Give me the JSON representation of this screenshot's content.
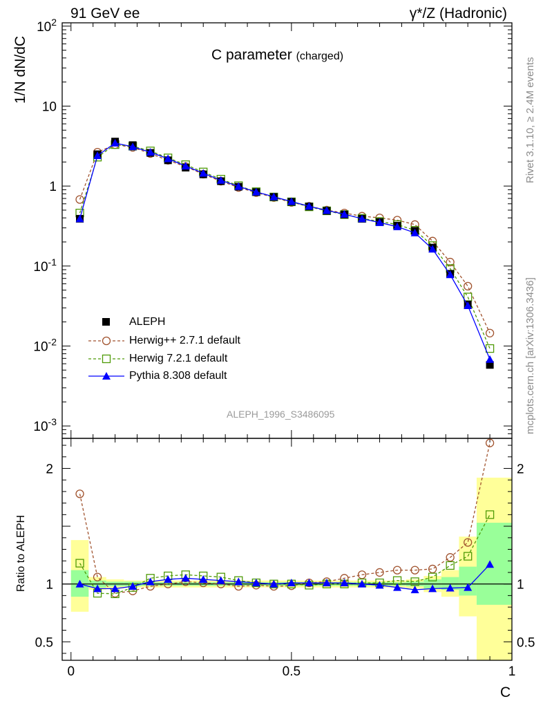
{
  "header": {
    "energy_label": "91 GeV ee",
    "process_label": "γ*/Z (Hadronic)"
  },
  "side": {
    "rivet_label": "Rivet 3.1.10, ≥ 2.4M events",
    "source_label": "mcplots.cern.ch [arXiv:1306.3436]"
  },
  "chart_data": [
    {
      "type": "line",
      "panel": "main",
      "title": "C parameter",
      "title_suffix": "(charged)",
      "ylabel": "1/N dN/dC",
      "xlabel": "",
      "yscale": "log",
      "ylim": [
        0.0007,
        110
      ],
      "xlim": [
        -0.02,
        1.0
      ],
      "yticks": [
        {
          "value": 0.001,
          "label": "10",
          "exp": "-3"
        },
        {
          "value": 0.01,
          "label": "10",
          "exp": "-2"
        },
        {
          "value": 0.1,
          "label": "10",
          "exp": "-1"
        },
        {
          "value": 1,
          "label": "1",
          "exp": ""
        },
        {
          "value": 10,
          "label": "10",
          "exp": ""
        },
        {
          "value": 100,
          "label": "10",
          "exp": "2"
        }
      ],
      "analysis_label": "ALEPH_1996_S3486095",
      "legend_position": "lower-left",
      "x": [
        0.02,
        0.06,
        0.1,
        0.14,
        0.18,
        0.22,
        0.26,
        0.3,
        0.34,
        0.38,
        0.42,
        0.46,
        0.5,
        0.54,
        0.58,
        0.62,
        0.66,
        0.7,
        0.74,
        0.78,
        0.82,
        0.86,
        0.9,
        0.95
      ],
      "series": [
        {
          "name": "ALEPH",
          "color": "#000000",
          "marker": "square-filled",
          "line": "none",
          "values": [
            0.39,
            2.5,
            3.6,
            3.25,
            2.6,
            2.1,
            1.7,
            1.4,
            1.15,
            0.98,
            0.84,
            0.73,
            0.635,
            0.555,
            0.49,
            0.44,
            0.39,
            0.355,
            0.32,
            0.275,
            0.17,
            0.08,
            0.033,
            0.0058
          ]
        },
        {
          "name": "Herwig++ 2.7.1 default",
          "color": "#a0522d",
          "marker": "circle-open",
          "line": "dashed",
          "values": [
            0.68,
            2.65,
            3.3,
            3.05,
            2.55,
            2.1,
            1.75,
            1.41,
            1.15,
            0.96,
            0.83,
            0.72,
            0.625,
            0.56,
            0.5,
            0.46,
            0.42,
            0.4,
            0.375,
            0.33,
            0.205,
            0.112,
            0.056,
            0.0145
          ]
        },
        {
          "name": "Herwig 7.2.1 default",
          "color": "#4e9a06",
          "marker": "square-open",
          "line": "dashed",
          "values": [
            0.46,
            2.3,
            3.3,
            3.15,
            2.75,
            2.25,
            1.85,
            1.5,
            1.22,
            1.01,
            0.85,
            0.73,
            0.635,
            0.55,
            0.49,
            0.44,
            0.395,
            0.36,
            0.33,
            0.28,
            0.18,
            0.093,
            0.041,
            0.0093
          ]
        },
        {
          "name": "Pythia 8.308 default",
          "color": "#0000ff",
          "marker": "triangle-filled",
          "line": "solid",
          "values": [
            0.39,
            2.4,
            3.45,
            3.1,
            2.65,
            2.2,
            1.78,
            1.45,
            1.18,
            0.99,
            0.845,
            0.735,
            0.64,
            0.56,
            0.495,
            0.445,
            0.39,
            0.35,
            0.31,
            0.26,
            0.163,
            0.078,
            0.032,
            0.0068
          ]
        }
      ]
    },
    {
      "type": "line",
      "panel": "ratio",
      "ylabel": "Ratio to ALEPH",
      "xlabel": "C",
      "yscale": "linear",
      "ylim": [
        0.34,
        2.26
      ],
      "xlim": [
        -0.02,
        1.0
      ],
      "yticks": [
        {
          "value": 0.5,
          "label": "0.5"
        },
        {
          "value": 1,
          "label": "1"
        },
        {
          "value": 2,
          "label": "2"
        }
      ],
      "xticks": [
        {
          "value": 0,
          "label": "0"
        },
        {
          "value": 0.5,
          "label": "0.5"
        },
        {
          "value": 1,
          "label": "1"
        }
      ],
      "x": [
        0.02,
        0.06,
        0.1,
        0.14,
        0.18,
        0.22,
        0.26,
        0.3,
        0.34,
        0.38,
        0.42,
        0.46,
        0.5,
        0.54,
        0.58,
        0.62,
        0.66,
        0.7,
        0.74,
        0.78,
        0.82,
        0.86,
        0.9,
        0.95
      ],
      "bins": {
        "edges": [
          0.0,
          0.04,
          0.08,
          0.12,
          0.16,
          0.2,
          0.24,
          0.28,
          0.32,
          0.36,
          0.4,
          0.44,
          0.48,
          0.52,
          0.56,
          0.6,
          0.64,
          0.68,
          0.72,
          0.76,
          0.8,
          0.84,
          0.88,
          0.92,
          1.0
        ],
        "stat_band": [
          [
            0.89,
            1.12
          ],
          [
            0.97,
            1.03
          ],
          [
            0.98,
            1.02
          ],
          [
            0.98,
            1.02
          ],
          [
            0.985,
            1.015
          ],
          [
            0.985,
            1.015
          ],
          [
            0.985,
            1.015
          ],
          [
            0.985,
            1.015
          ],
          [
            0.985,
            1.015
          ],
          [
            0.985,
            1.015
          ],
          [
            0.985,
            1.015
          ],
          [
            0.985,
            1.015
          ],
          [
            0.985,
            1.015
          ],
          [
            0.985,
            1.015
          ],
          [
            0.985,
            1.015
          ],
          [
            0.985,
            1.015
          ],
          [
            0.985,
            1.015
          ],
          [
            0.985,
            1.015
          ],
          [
            0.985,
            1.015
          ],
          [
            0.98,
            1.02
          ],
          [
            0.96,
            1.04
          ],
          [
            0.95,
            1.06
          ],
          [
            0.9,
            1.15
          ],
          [
            0.82,
            1.53
          ]
        ],
        "total_band": [
          [
            0.76,
            1.38
          ],
          [
            0.95,
            1.06
          ],
          [
            0.96,
            1.04
          ],
          [
            0.97,
            1.03
          ],
          [
            0.97,
            1.03
          ],
          [
            0.97,
            1.03
          ],
          [
            0.97,
            1.03
          ],
          [
            0.97,
            1.03
          ],
          [
            0.97,
            1.03
          ],
          [
            0.97,
            1.03
          ],
          [
            0.97,
            1.03
          ],
          [
            0.97,
            1.03
          ],
          [
            0.97,
            1.03
          ],
          [
            0.97,
            1.03
          ],
          [
            0.97,
            1.03
          ],
          [
            0.97,
            1.03
          ],
          [
            0.97,
            1.03
          ],
          [
            0.97,
            1.03
          ],
          [
            0.97,
            1.03
          ],
          [
            0.96,
            1.04
          ],
          [
            0.93,
            1.07
          ],
          [
            0.89,
            1.12
          ],
          [
            0.72,
            1.41
          ],
          [
            0.34,
            1.92
          ]
        ]
      },
      "reference_line": 1,
      "series": [
        {
          "name": "Herwig++ 2.7.1 default",
          "color": "#a0522d",
          "marker": "circle-open",
          "line": "dashed",
          "values": [
            1.78,
            1.06,
            0.92,
            0.94,
            0.98,
            1.0,
            1.02,
            1.01,
            1.0,
            0.98,
            0.99,
            0.98,
            0.985,
            1.01,
            1.02,
            1.05,
            1.08,
            1.1,
            1.12,
            1.12,
            1.13,
            1.23,
            1.36,
            2.22
          ]
        },
        {
          "name": "Herwig 7.2.1 default",
          "color": "#4e9a06",
          "marker": "square-open",
          "line": "dashed",
          "values": [
            1.18,
            0.92,
            0.915,
            0.97,
            1.05,
            1.07,
            1.08,
            1.07,
            1.06,
            1.03,
            1.01,
            1.0,
            1.0,
            0.99,
            1.0,
            1.0,
            1.01,
            1.01,
            1.03,
            1.02,
            1.06,
            1.16,
            1.24,
            1.6
          ]
        },
        {
          "name": "Pythia 8.308 default",
          "color": "#0000ff",
          "marker": "triangle-filled",
          "line": "solid",
          "values": [
            1.0,
            0.96,
            0.96,
            0.98,
            1.02,
            1.04,
            1.05,
            1.04,
            1.03,
            1.02,
            1.01,
            1.0,
            1.01,
            1.01,
            1.01,
            1.01,
            1.0,
            0.99,
            0.97,
            0.95,
            0.96,
            0.965,
            0.97,
            1.17
          ]
        }
      ]
    }
  ]
}
